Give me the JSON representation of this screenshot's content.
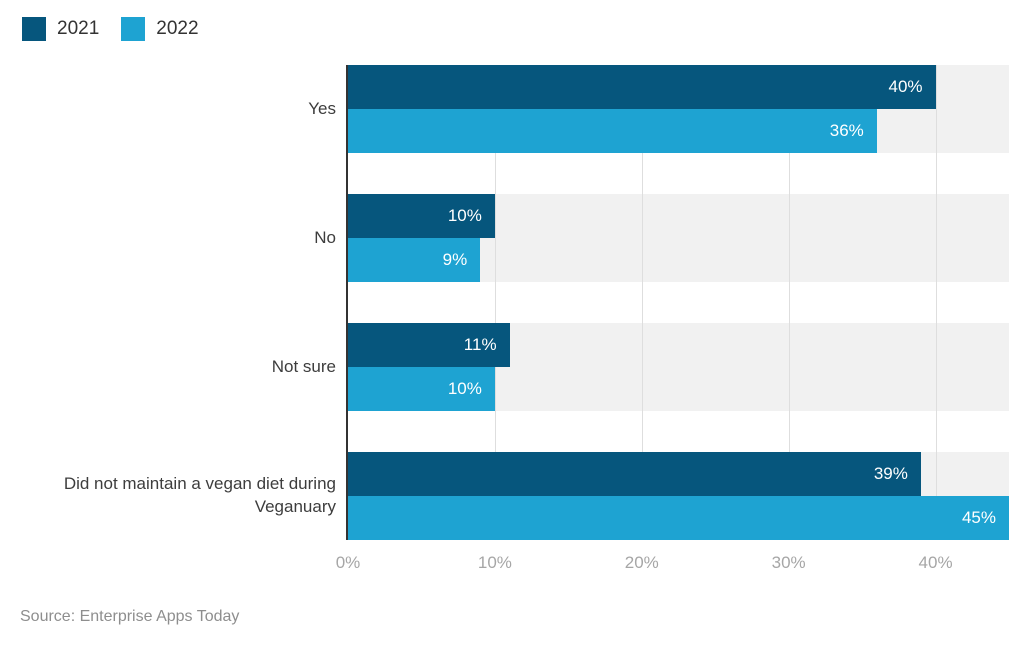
{
  "source": {
    "text": "Source: Enterprise Apps Today"
  },
  "colors": {
    "series_2021": "#06567d",
    "series_2022": "#1ea3d2",
    "row_track": "#f1f1f1",
    "gridline": "#dedede",
    "axis_line": "#333333",
    "bar_label_text": "#ffffff",
    "tick_label_text": "#a6a6a6"
  },
  "chart_data": {
    "type": "bar",
    "orientation": "horizontal",
    "title": "",
    "categories": [
      "Yes",
      "No",
      "Not sure",
      "Did not maintain a vegan diet during Veganuary"
    ],
    "series": [
      {
        "name": "2021",
        "color": "#06567d",
        "values": [
          40,
          10,
          11,
          39
        ],
        "labels": [
          "40%",
          "10%",
          "11%",
          "39%"
        ]
      },
      {
        "name": "2022",
        "color": "#1ea3d2",
        "values": [
          36,
          9,
          10,
          45
        ],
        "labels": [
          "36%",
          "9%",
          "10%",
          "45%"
        ]
      }
    ],
    "xlim": [
      0,
      45
    ],
    "xticks": [
      0,
      10,
      20,
      30,
      40
    ],
    "xtick_labels": [
      "0%",
      "10%",
      "20%",
      "30%",
      "40%"
    ],
    "grid": true,
    "legend_position": "top-left",
    "xlabel": "",
    "ylabel": ""
  }
}
